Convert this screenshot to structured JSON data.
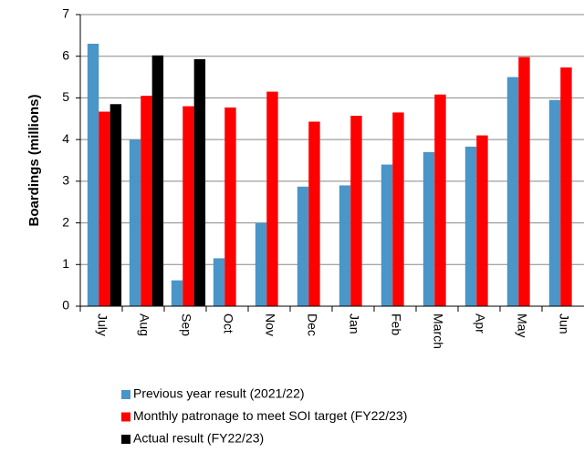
{
  "chart_data": {
    "type": "bar",
    "y_label": "Boardings (millions)",
    "categories": [
      "July",
      "Aug",
      "Sep",
      "Oct",
      "Nov",
      "Dec",
      "Jan",
      "Feb",
      "March",
      "Apr",
      "May",
      "Jun"
    ],
    "series": [
      {
        "name": "Previous year result (2021/22)",
        "color": "#4a96c8",
        "values": [
          6.3,
          4.0,
          0.62,
          1.15,
          2.0,
          2.87,
          2.9,
          3.4,
          3.7,
          3.83,
          5.5,
          4.95
        ]
      },
      {
        "name": "Monthly patronage to meet SOI target (FY22/23)",
        "color": "#ff0000",
        "values": [
          4.67,
          5.05,
          4.8,
          4.77,
          5.15,
          4.43,
          4.57,
          4.65,
          5.08,
          4.1,
          5.98,
          5.73
        ]
      },
      {
        "name": "Actual result (FY22/23)",
        "color": "#000000",
        "values": [
          4.85,
          6.02,
          5.93,
          null,
          null,
          null,
          null,
          null,
          null,
          null,
          null,
          null
        ]
      }
    ],
    "ylim": [
      0,
      7
    ],
    "yticks": [
      0,
      1,
      2,
      3,
      4,
      5,
      6,
      7
    ],
    "grid": true
  }
}
